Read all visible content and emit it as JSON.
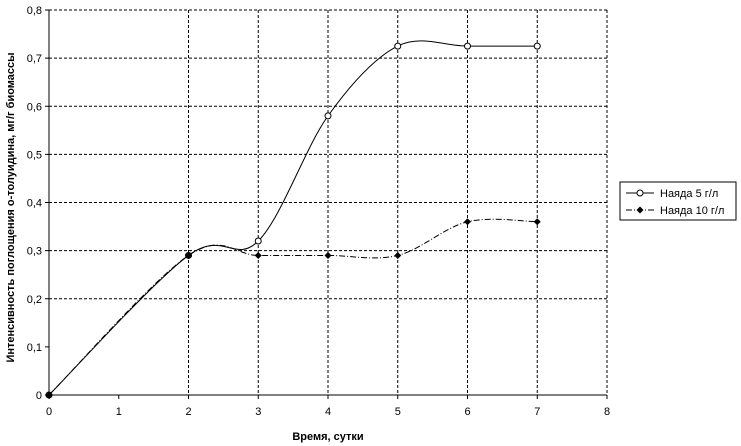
{
  "chart_data": {
    "type": "line",
    "xlabel": "Время, сутки",
    "ylabel": "Интенсивность поглощения о-толуидина, мг/г биомассы",
    "xlim": [
      0,
      8
    ],
    "ylim": [
      0,
      0.8
    ],
    "x_ticks": [
      "0",
      "1",
      "2",
      "3",
      "4",
      "5",
      "6",
      "7",
      "8"
    ],
    "y_ticks": [
      "0",
      "0,1",
      "0,2",
      "0,3",
      "0,4",
      "0,5",
      "0,6",
      "0,7",
      "0,8"
    ],
    "grid": "dashed, vertical at x=2..8 and horizontal at y=0.2..0.8",
    "legend_position": "right",
    "series": [
      {
        "name": "Наяда 5 г/л",
        "line_style": "solid",
        "marker": "open-circle",
        "x": [
          0,
          2,
          3,
          4,
          5,
          6,
          7
        ],
        "y": [
          0,
          0.29,
          0.32,
          0.58,
          0.725,
          0.725,
          0.725
        ]
      },
      {
        "name": "Наяда 10 г/л",
        "line_style": "dash-dot",
        "marker": "filled-diamond",
        "x": [
          0,
          2,
          3,
          4,
          5,
          6,
          7
        ],
        "y": [
          0,
          0.29,
          0.29,
          0.29,
          0.29,
          0.36,
          0.36
        ]
      }
    ]
  }
}
